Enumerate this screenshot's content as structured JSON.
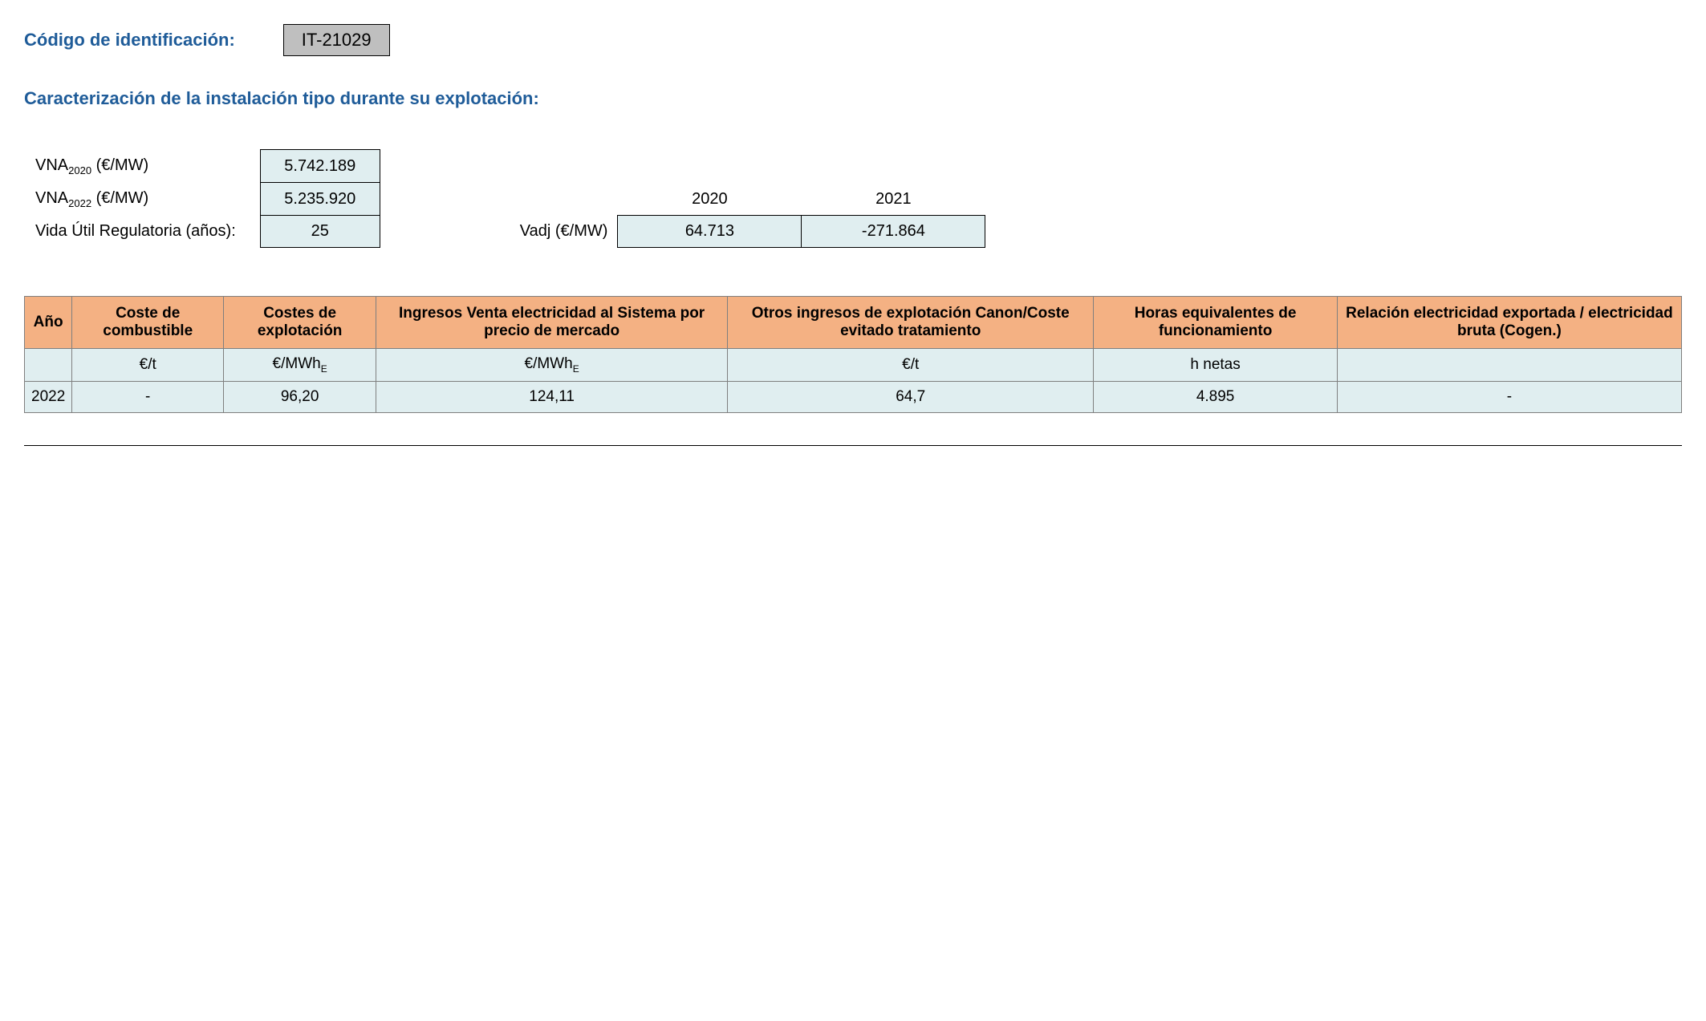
{
  "header": {
    "codigo_label": "Código de identificación:",
    "codigo_value": "IT-21029",
    "section_title": "Caracterización de la instalación tipo durante su explotación:"
  },
  "params": {
    "vna2020_label_pre": "VNA",
    "vna2020_sub": "2020",
    "vna2020_label_post": " (€/MW)",
    "vna2020_value": "5.742.189",
    "vna2022_label_pre": "VNA",
    "vna2022_sub": "2022",
    "vna2022_label_post": " (€/MW)",
    "vna2022_value": "5.235.920",
    "vida_label": "Vida Útil Regulatoria (años):",
    "vida_value": "25"
  },
  "vadj": {
    "label": "Vadj (€/MW)",
    "year1": "2020",
    "year2": "2021",
    "val1": "64.713",
    "val2": "-271.864"
  },
  "table": {
    "headers": {
      "ano": "Año",
      "coste_comb": "Coste de combustible",
      "costes_expl": "Costes de explotación",
      "ingresos_venta": "Ingresos Venta electricidad al Sistema por precio de mercado",
      "otros_ingresos": "Otros ingresos de explotación Canon/Coste evitado tratamiento",
      "horas": "Horas equivalentes de funcionamiento",
      "relacion": "Relación electricidad exportada / electricidad bruta (Cogen.)"
    },
    "units": {
      "ano": "",
      "coste_comb": "€/t",
      "costes_expl_pre": "€/MWh",
      "costes_expl_sub": "E",
      "ingresos_venta_pre": "€/MWh",
      "ingresos_venta_sub": "E",
      "otros_ingresos": "€/t",
      "horas": "h netas",
      "relacion": ""
    },
    "rows": [
      {
        "ano": "2022",
        "coste_comb": "-",
        "costes_expl": "96,20",
        "ingresos_venta": "124,11",
        "otros_ingresos": "64,7",
        "horas": "4.895",
        "relacion": "-"
      }
    ]
  },
  "style": {
    "heading_color": "#1f5c99",
    "codebox_bg": "#bfbfbf",
    "param_bg": "#e0eef0",
    "th_bg": "#f4b183",
    "border_color": "#7f7f7f"
  }
}
